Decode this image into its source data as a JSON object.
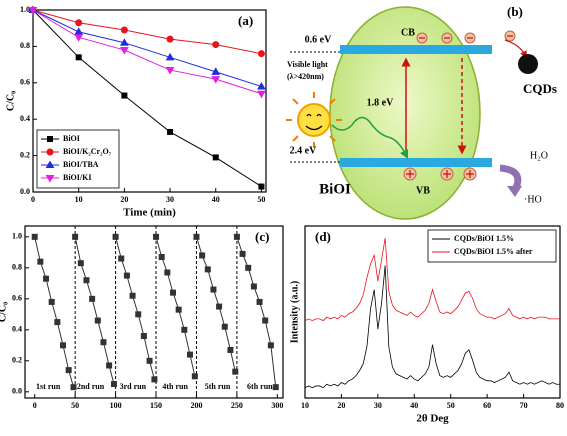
{
  "chart_data": [
    {
      "type": "line",
      "panel_label": "(a)",
      "x_label": "Time (min)",
      "y_label": "C/C₀",
      "x": [
        0,
        10,
        20,
        30,
        40,
        50
      ],
      "series": [
        {
          "name": "BiOI",
          "color": "#000000",
          "marker": "square",
          "values": [
            1.0,
            0.74,
            0.53,
            0.33,
            0.19,
            0.03
          ]
        },
        {
          "name": "BiOI/K₂Cr₂O₇",
          "color": "#e8141c",
          "marker": "circle",
          "values": [
            1.0,
            0.93,
            0.89,
            0.84,
            0.81,
            0.76
          ]
        },
        {
          "name": "BiOI/TBA",
          "color": "#1c2ee0",
          "marker": "triangle",
          "values": [
            1.0,
            0.88,
            0.82,
            0.74,
            0.66,
            0.58
          ]
        },
        {
          "name": "BiOI/KI",
          "color": "#e020e0",
          "marker": "triangle-down",
          "values": [
            1.0,
            0.85,
            0.78,
            0.67,
            0.62,
            0.54
          ]
        }
      ],
      "xlim": [
        0,
        51
      ],
      "ylim": [
        0,
        1.0
      ],
      "xticks": [
        0,
        10,
        20,
        30,
        40,
        50
      ],
      "yticks": [
        {
          "value": 0,
          "label": "0.0"
        },
        0.2,
        0.4,
        0.6,
        0.8,
        {
          "value": 1,
          "label": "1.0"
        }
      ],
      "legend": "lower-left"
    },
    {
      "type": "line",
      "panel_label": "(c)",
      "y_label": "C/C₀",
      "series": [
        {
          "color": "#333333",
          "marker": "square",
          "x": [
            0,
            7,
            14,
            21,
            28,
            35,
            42,
            48
          ],
          "values": [
            1.0,
            0.84,
            0.73,
            0.58,
            0.45,
            0.3,
            0.14,
            0.03
          ]
        },
        {
          "color": "#333333",
          "marker": "square",
          "x": [
            50,
            57,
            64,
            71,
            78,
            85,
            92,
            98
          ],
          "values": [
            1.0,
            0.83,
            0.72,
            0.6,
            0.46,
            0.32,
            0.17,
            0.05
          ]
        },
        {
          "color": "#333333",
          "marker": "square",
          "x": [
            100,
            107,
            114,
            121,
            128,
            135,
            142,
            148
          ],
          "values": [
            1.0,
            0.86,
            0.75,
            0.62,
            0.5,
            0.36,
            0.2,
            0.08
          ]
        },
        {
          "color": "#333333",
          "marker": "square",
          "x": [
            150,
            157,
            164,
            171,
            178,
            185,
            192,
            198
          ],
          "values": [
            1.0,
            0.87,
            0.77,
            0.64,
            0.53,
            0.4,
            0.24,
            0.1
          ]
        },
        {
          "color": "#333333",
          "marker": "square",
          "x": [
            200,
            207,
            214,
            221,
            228,
            235,
            242,
            248
          ],
          "values": [
            1.0,
            0.88,
            0.79,
            0.66,
            0.55,
            0.42,
            0.27,
            0.13
          ]
        },
        {
          "color": "#333333",
          "marker": "square",
          "x": [
            250,
            257,
            264,
            271,
            278,
            285,
            292,
            298
          ],
          "values": [
            1.0,
            0.89,
            0.8,
            0.68,
            0.58,
            0.46,
            0.3,
            0.03
          ]
        }
      ],
      "run_dividers": [
        50,
        100,
        150,
        200,
        250
      ],
      "run_labels": [
        "1st run",
        "2nd run",
        "3rd run",
        "4th run",
        "5th run",
        "6th run"
      ],
      "xlim": [
        -12,
        307
      ],
      "ylim": [
        -0.04,
        1.07
      ],
      "xticks": [
        0,
        50,
        100,
        150,
        200,
        250,
        300
      ],
      "yticks": [
        {
          "value": 0,
          "label": "0.0"
        },
        0.2,
        0.4,
        0.6,
        0.8,
        {
          "value": 1,
          "label": "1.0"
        }
      ]
    },
    {
      "type": "line",
      "panel_label": "(d)",
      "x_label": "2θ Deg",
      "y_label": "Intensity (a.u.)",
      "x": [
        10,
        11,
        12,
        13,
        14,
        15,
        16,
        17,
        18,
        19,
        20,
        21,
        22,
        23,
        24,
        25,
        26,
        27,
        28,
        29,
        30,
        31,
        32,
        33,
        34,
        35,
        36,
        37,
        38,
        39,
        40,
        41,
        42,
        43,
        44,
        45,
        46,
        47,
        48,
        49,
        50,
        51,
        52,
        53,
        54,
        55,
        56,
        57,
        58,
        59,
        60,
        61,
        62,
        63,
        64,
        65,
        66,
        67,
        68,
        69,
        70,
        71,
        72,
        73,
        74,
        75,
        76,
        77,
        78,
        79,
        80
      ],
      "series": [
        {
          "name": "CQDs/BiOI 1.5%",
          "color": "#000000",
          "values": [
            6,
            7,
            6,
            7,
            7,
            6,
            8,
            7,
            8,
            7,
            9,
            8,
            10,
            11,
            13,
            16,
            20,
            30,
            52,
            63,
            40,
            55,
            77,
            30,
            18,
            14,
            13,
            12,
            11,
            13,
            11,
            10,
            12,
            14,
            18,
            31,
            20,
            13,
            12,
            13,
            12,
            14,
            16,
            20,
            26,
            28,
            22,
            15,
            12,
            11,
            10,
            10,
            9,
            10,
            11,
            12,
            15,
            10,
            9,
            8,
            9,
            8,
            9,
            8,
            9,
            10,
            9,
            8,
            9,
            8,
            8
          ]
        },
        {
          "name": "CQDs/BiOI 1.5% after",
          "color": "#e8141c",
          "values": [
            45,
            46,
            45,
            46,
            46,
            45,
            47,
            46,
            47,
            46,
            48,
            47,
            49,
            50,
            52,
            55,
            60,
            70,
            78,
            83,
            68,
            80,
            93,
            62,
            54,
            51,
            50,
            49,
            48,
            50,
            48,
            47,
            49,
            51,
            55,
            63,
            56,
            50,
            49,
            50,
            49,
            51,
            53,
            57,
            61,
            62,
            58,
            52,
            49,
            48,
            47,
            47,
            46,
            47,
            48,
            49,
            52,
            48,
            47,
            46,
            47,
            46,
            47,
            46,
            47,
            47,
            47,
            46,
            46,
            46,
            46
          ]
        }
      ],
      "xlim": [
        10,
        80
      ],
      "ylim": [
        0,
        100
      ],
      "xticks": [
        10,
        20,
        30,
        40,
        50,
        60,
        70,
        80
      ],
      "legend": "upper-right"
    }
  ],
  "diagram": {
    "panel_label": "(b)",
    "cb": "CB",
    "vb": "VB",
    "cb_energy": "0.6 eV",
    "gap": "1.8 eV",
    "vb_energy": "2.4 eV",
    "light": "Visible light",
    "wavelength": "(λ>420nm)",
    "material": "BiOI",
    "cqds": "CQDs",
    "water": "H₂O",
    "radical": "·HO"
  }
}
